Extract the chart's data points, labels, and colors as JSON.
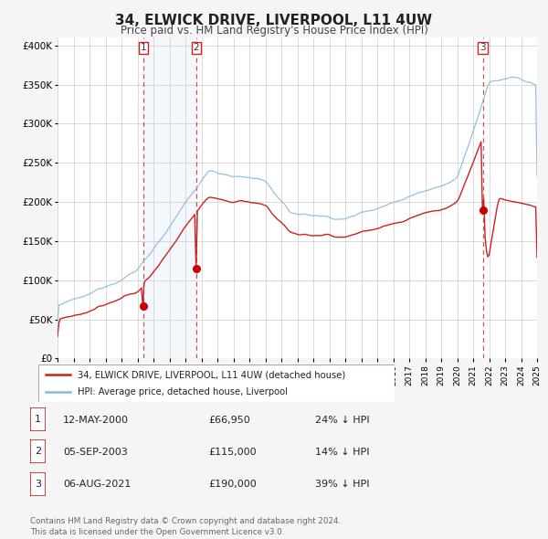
{
  "title": "34, ELWICK DRIVE, LIVERPOOL, L11 4UW",
  "subtitle": "Price paid vs. HM Land Registry's House Price Index (HPI)",
  "background_color": "#f5f5f5",
  "plot_bg_color": "#ffffff",
  "grid_color": "#cccccc",
  "hpi_color": "#88bbdd",
  "price_color": "#cc2222",
  "sale_marker_color": "#cc0000",
  "shade_color": "#ddeeff",
  "ylim": [
    0,
    410000
  ],
  "yticks": [
    0,
    50000,
    100000,
    150000,
    200000,
    250000,
    300000,
    350000,
    400000
  ],
  "ytick_labels": [
    "£0",
    "£50K",
    "£100K",
    "£150K",
    "£200K",
    "£250K",
    "£300K",
    "£350K",
    "£400K"
  ],
  "legend_label_price": "34, ELWICK DRIVE, LIVERPOOL, L11 4UW (detached house)",
  "legend_label_hpi": "HPI: Average price, detached house, Liverpool",
  "transaction1_date": "12-MAY-2000",
  "transaction1_price": "£66,950",
  "transaction1_pct": "24% ↓ HPI",
  "transaction1_year": 2000.37,
  "transaction1_value": 66950,
  "transaction2_date": "05-SEP-2003",
  "transaction2_price": "£115,000",
  "transaction2_pct": "14% ↓ HPI",
  "transaction2_year": 2003.67,
  "transaction2_value": 115000,
  "transaction3_date": "06-AUG-2021",
  "transaction3_price": "£190,000",
  "transaction3_pct": "39% ↓ HPI",
  "transaction3_year": 2021.6,
  "transaction3_value": 190000,
  "footer": "Contains HM Land Registry data © Crown copyright and database right 2024.\nThis data is licensed under the Open Government Licence v3.0."
}
